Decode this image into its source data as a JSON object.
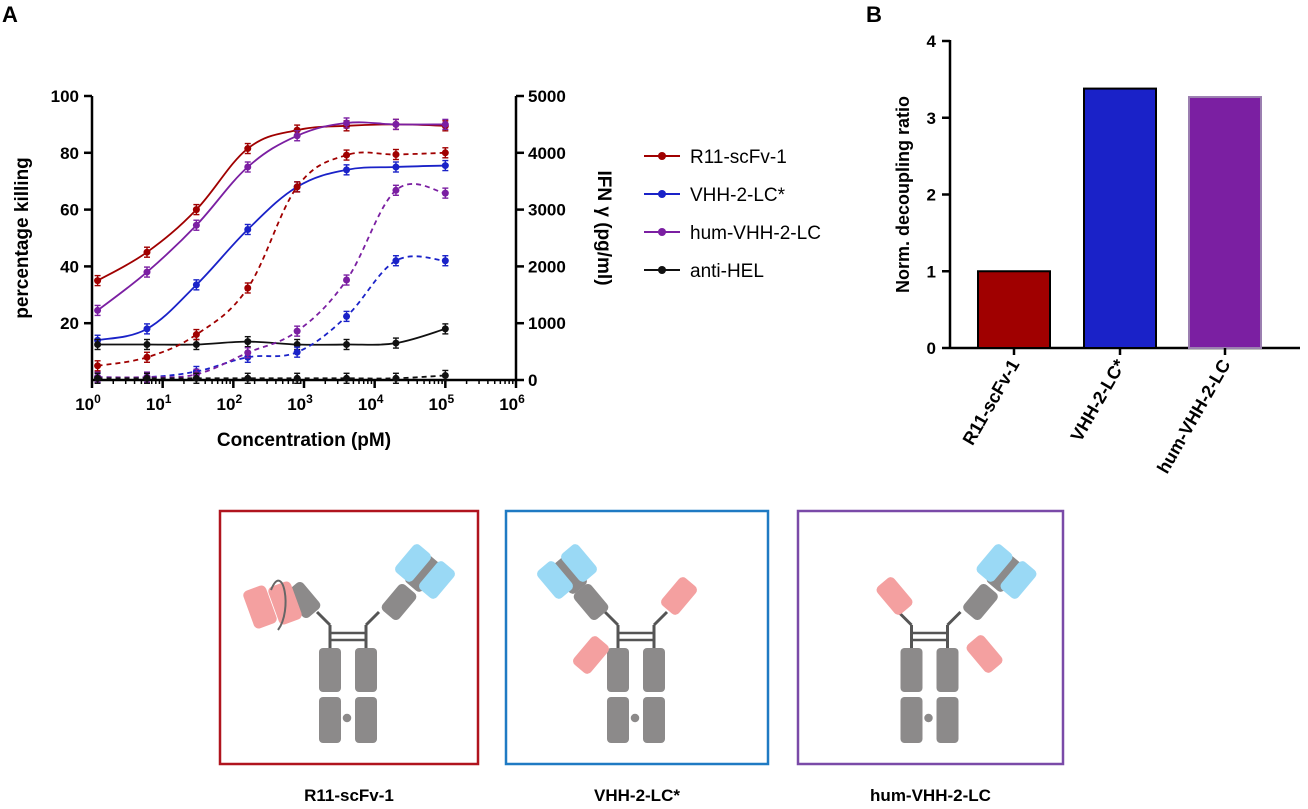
{
  "panels": {
    "a_label": "A",
    "b_label": "B"
  },
  "colors": {
    "R11-scFv-1": "#a00000",
    "VHH-2-LC*": "#1a22c8",
    "hum-VHH-2-LC": "#7b1fa2",
    "anti-HEL": "#111111",
    "box_red": "#b0141e",
    "box_blue": "#1f7ac3",
    "box_purple": "#7a4aa8",
    "domain_gray": "#8c8a8a",
    "domain_pink": "#f4a0a0",
    "domain_blue": "#9ad9f5"
  },
  "chart_data": [
    {
      "type": "scatter",
      "xlabel": "Concentration (pM)",
      "ylabel": "percentage killing",
      "ylabel_right": "IFN γ (pg/ml)",
      "x_scale": "log",
      "xlim": [
        1,
        1000000
      ],
      "ylim": [
        0,
        100
      ],
      "ylim_right": [
        0,
        5000
      ],
      "x_ticks": [
        1,
        10,
        100,
        1000,
        10000,
        100000,
        1000000
      ],
      "y_ticks": [
        20,
        40,
        60,
        80,
        100
      ],
      "y_ticks_right": [
        0,
        1000,
        2000,
        3000,
        4000,
        5000
      ],
      "legend_position": "right",
      "legend_lines": "solid = percentage killing (left axis); dashed = IFN γ (right axis)",
      "x": [
        1.2,
        6,
        30,
        160,
        800,
        4000,
        20000,
        100000
      ],
      "series": [
        {
          "name": "R11-scFv-1",
          "axis": "left",
          "line": "solid",
          "values": [
            35,
            45,
            60,
            81.5,
            88,
            89.5,
            90,
            89.5
          ]
        },
        {
          "name": "VHH-2-LC*",
          "axis": "left",
          "line": "solid",
          "values": [
            14,
            18,
            33.5,
            53,
            68,
            74,
            75,
            75.5
          ]
        },
        {
          "name": "hum-VHH-2-LC",
          "axis": "left",
          "line": "solid",
          "values": [
            24.5,
            38,
            54.5,
            75,
            86,
            90.5,
            90,
            90
          ]
        },
        {
          "name": "anti-HEL",
          "axis": "left",
          "line": "solid",
          "values": [
            12.5,
            12.5,
            12.5,
            13.5,
            12.5,
            12.5,
            13,
            18
          ]
        },
        {
          "name": "R11-scFv-1",
          "axis": "right",
          "line": "dashed",
          "values": [
            250,
            400,
            800,
            1620,
            3400,
            3960,
            3970,
            4000
          ]
        },
        {
          "name": "VHH-2-LC*",
          "axis": "right",
          "line": "dashed",
          "values": [
            50,
            50,
            150,
            400,
            490,
            1120,
            2100,
            2100
          ]
        },
        {
          "name": "hum-VHH-2-LC",
          "axis": "right",
          "line": "dashed",
          "values": [
            50,
            50,
            100,
            480,
            860,
            1760,
            3340,
            3290
          ]
        },
        {
          "name": "anti-HEL",
          "axis": "right",
          "line": "dashed",
          "values": [
            30,
            30,
            30,
            30,
            30,
            30,
            30,
            80
          ]
        }
      ]
    },
    {
      "type": "bar",
      "categories": [
        "R11-scFv-1",
        "VHH-2-LC*",
        "hum-VHH-2-LC"
      ],
      "values": [
        1.0,
        3.38,
        3.27
      ],
      "ylabel": "Norm. decoupling ratio",
      "ylim": [
        0,
        4
      ],
      "y_ticks": [
        0,
        1,
        2,
        3,
        4
      ]
    }
  ],
  "schematics": [
    {
      "label": "R11-scFv-1",
      "color": "#b0141e"
    },
    {
      "label": "VHH-2-LC*",
      "color": "#1f7ac3"
    },
    {
      "label": "hum-VHH-2-LC",
      "color": "#7a4aa8"
    }
  ]
}
